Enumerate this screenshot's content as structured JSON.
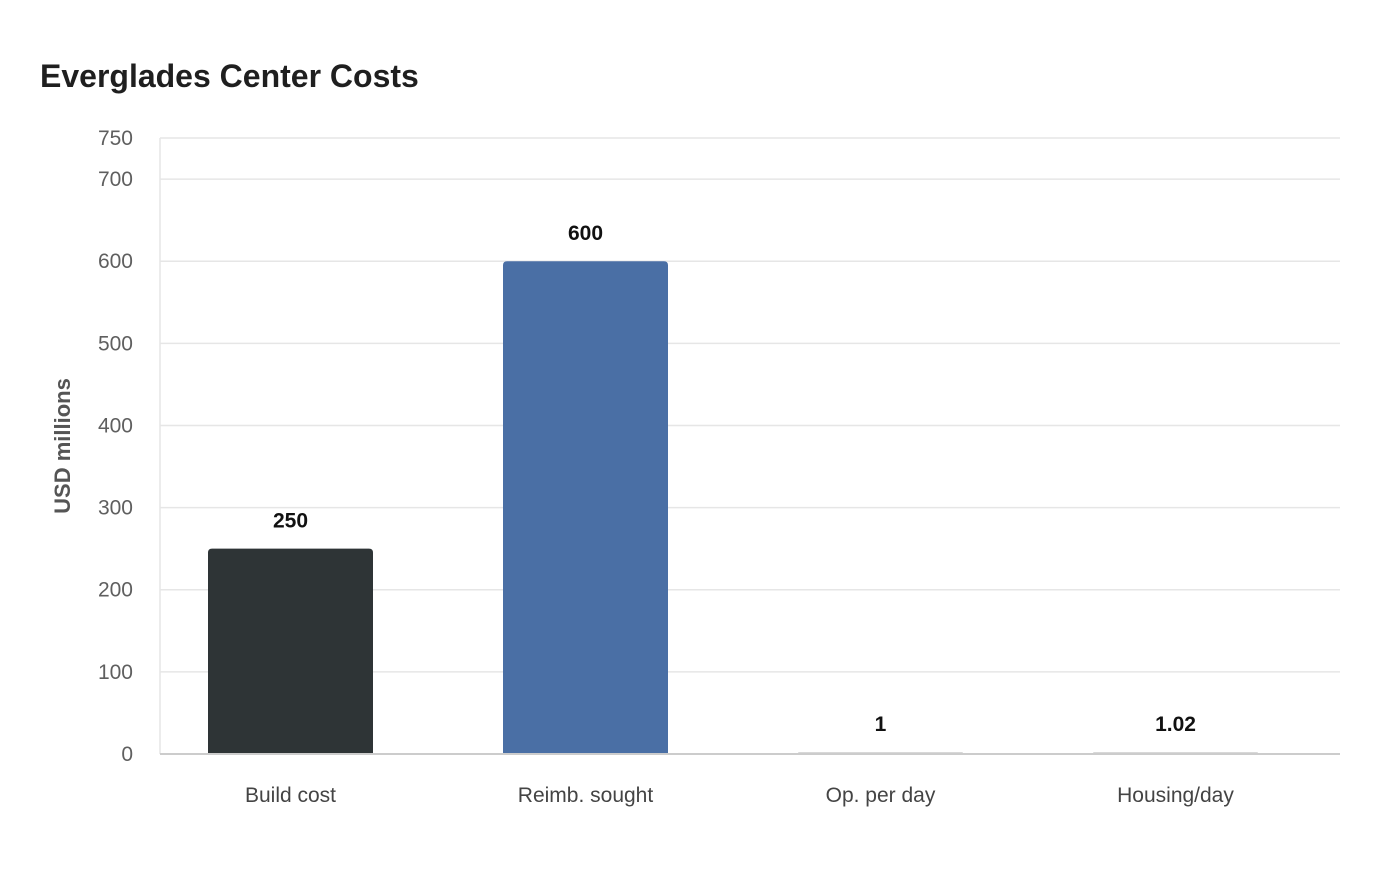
{
  "chart_data": {
    "type": "bar",
    "title": "Everglades Center Costs",
    "xlabel": "",
    "ylabel": "USD millions",
    "categories": [
      "Build cost",
      "Reimb. sought",
      "Op. per day",
      "Housing/day"
    ],
    "values": [
      250,
      600,
      1,
      1.02
    ],
    "value_labels": [
      "250",
      "600",
      "1",
      "1.02"
    ],
    "colors": [
      "#2e3436",
      "#4a6fa5",
      "#d8d8d8",
      "#d8d8d8"
    ],
    "ylim": [
      0,
      750
    ],
    "yticks": [
      0,
      100,
      200,
      300,
      400,
      500,
      600,
      700,
      750
    ],
    "grid": true,
    "legend": "none"
  }
}
